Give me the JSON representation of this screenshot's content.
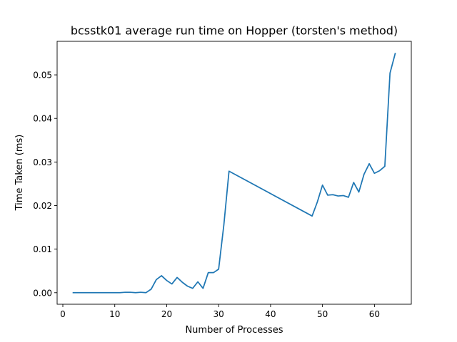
{
  "chart_data": {
    "type": "line",
    "title": "bcsstk01 average run time on Hopper (torsten's method)",
    "xlabel": "Number of Processes",
    "ylabel": "Time Taken (ms)",
    "xlim": [
      -1.1,
      67.1
    ],
    "ylim": [
      -0.00265,
      0.0577
    ],
    "xticks": [
      0,
      10,
      20,
      30,
      40,
      50,
      60
    ],
    "xtick_labels": [
      "0",
      "10",
      "20",
      "30",
      "40",
      "50",
      "60"
    ],
    "yticks": [
      0,
      0.01,
      0.02,
      0.03,
      0.04,
      0.05
    ],
    "ytick_labels": [
      "0.00",
      "0.01",
      "0.02",
      "0.03",
      "0.04",
      "0.05"
    ],
    "grid": false,
    "legend": "none",
    "series": [
      {
        "color": "#1f77b4",
        "x": [
          2,
          4,
          6,
          8,
          10,
          11,
          12,
          13,
          14,
          15,
          16,
          17,
          18,
          19,
          20,
          21,
          22,
          23,
          24,
          25,
          26,
          27,
          28,
          29,
          30,
          31,
          32,
          48,
          49,
          50,
          51,
          52,
          53,
          54,
          55,
          56,
          57,
          58,
          59,
          60,
          61,
          62,
          63,
          64
        ],
        "y": [
          0.0,
          0.0,
          0.0,
          0.0,
          0.0,
          0.0,
          0.0001,
          0.0001,
          0.0,
          0.0001,
          0.0,
          0.0008,
          0.003,
          0.0039,
          0.0028,
          0.002,
          0.0035,
          0.0024,
          0.0015,
          0.001,
          0.0025,
          0.001,
          0.0046,
          0.0046,
          0.0054,
          0.0155,
          0.0279,
          0.0176,
          0.0208,
          0.0247,
          0.0224,
          0.0225,
          0.0222,
          0.0223,
          0.0219,
          0.0253,
          0.0231,
          0.0272,
          0.0296,
          0.0274,
          0.028,
          0.029,
          0.0504,
          0.0549
        ]
      }
    ]
  }
}
